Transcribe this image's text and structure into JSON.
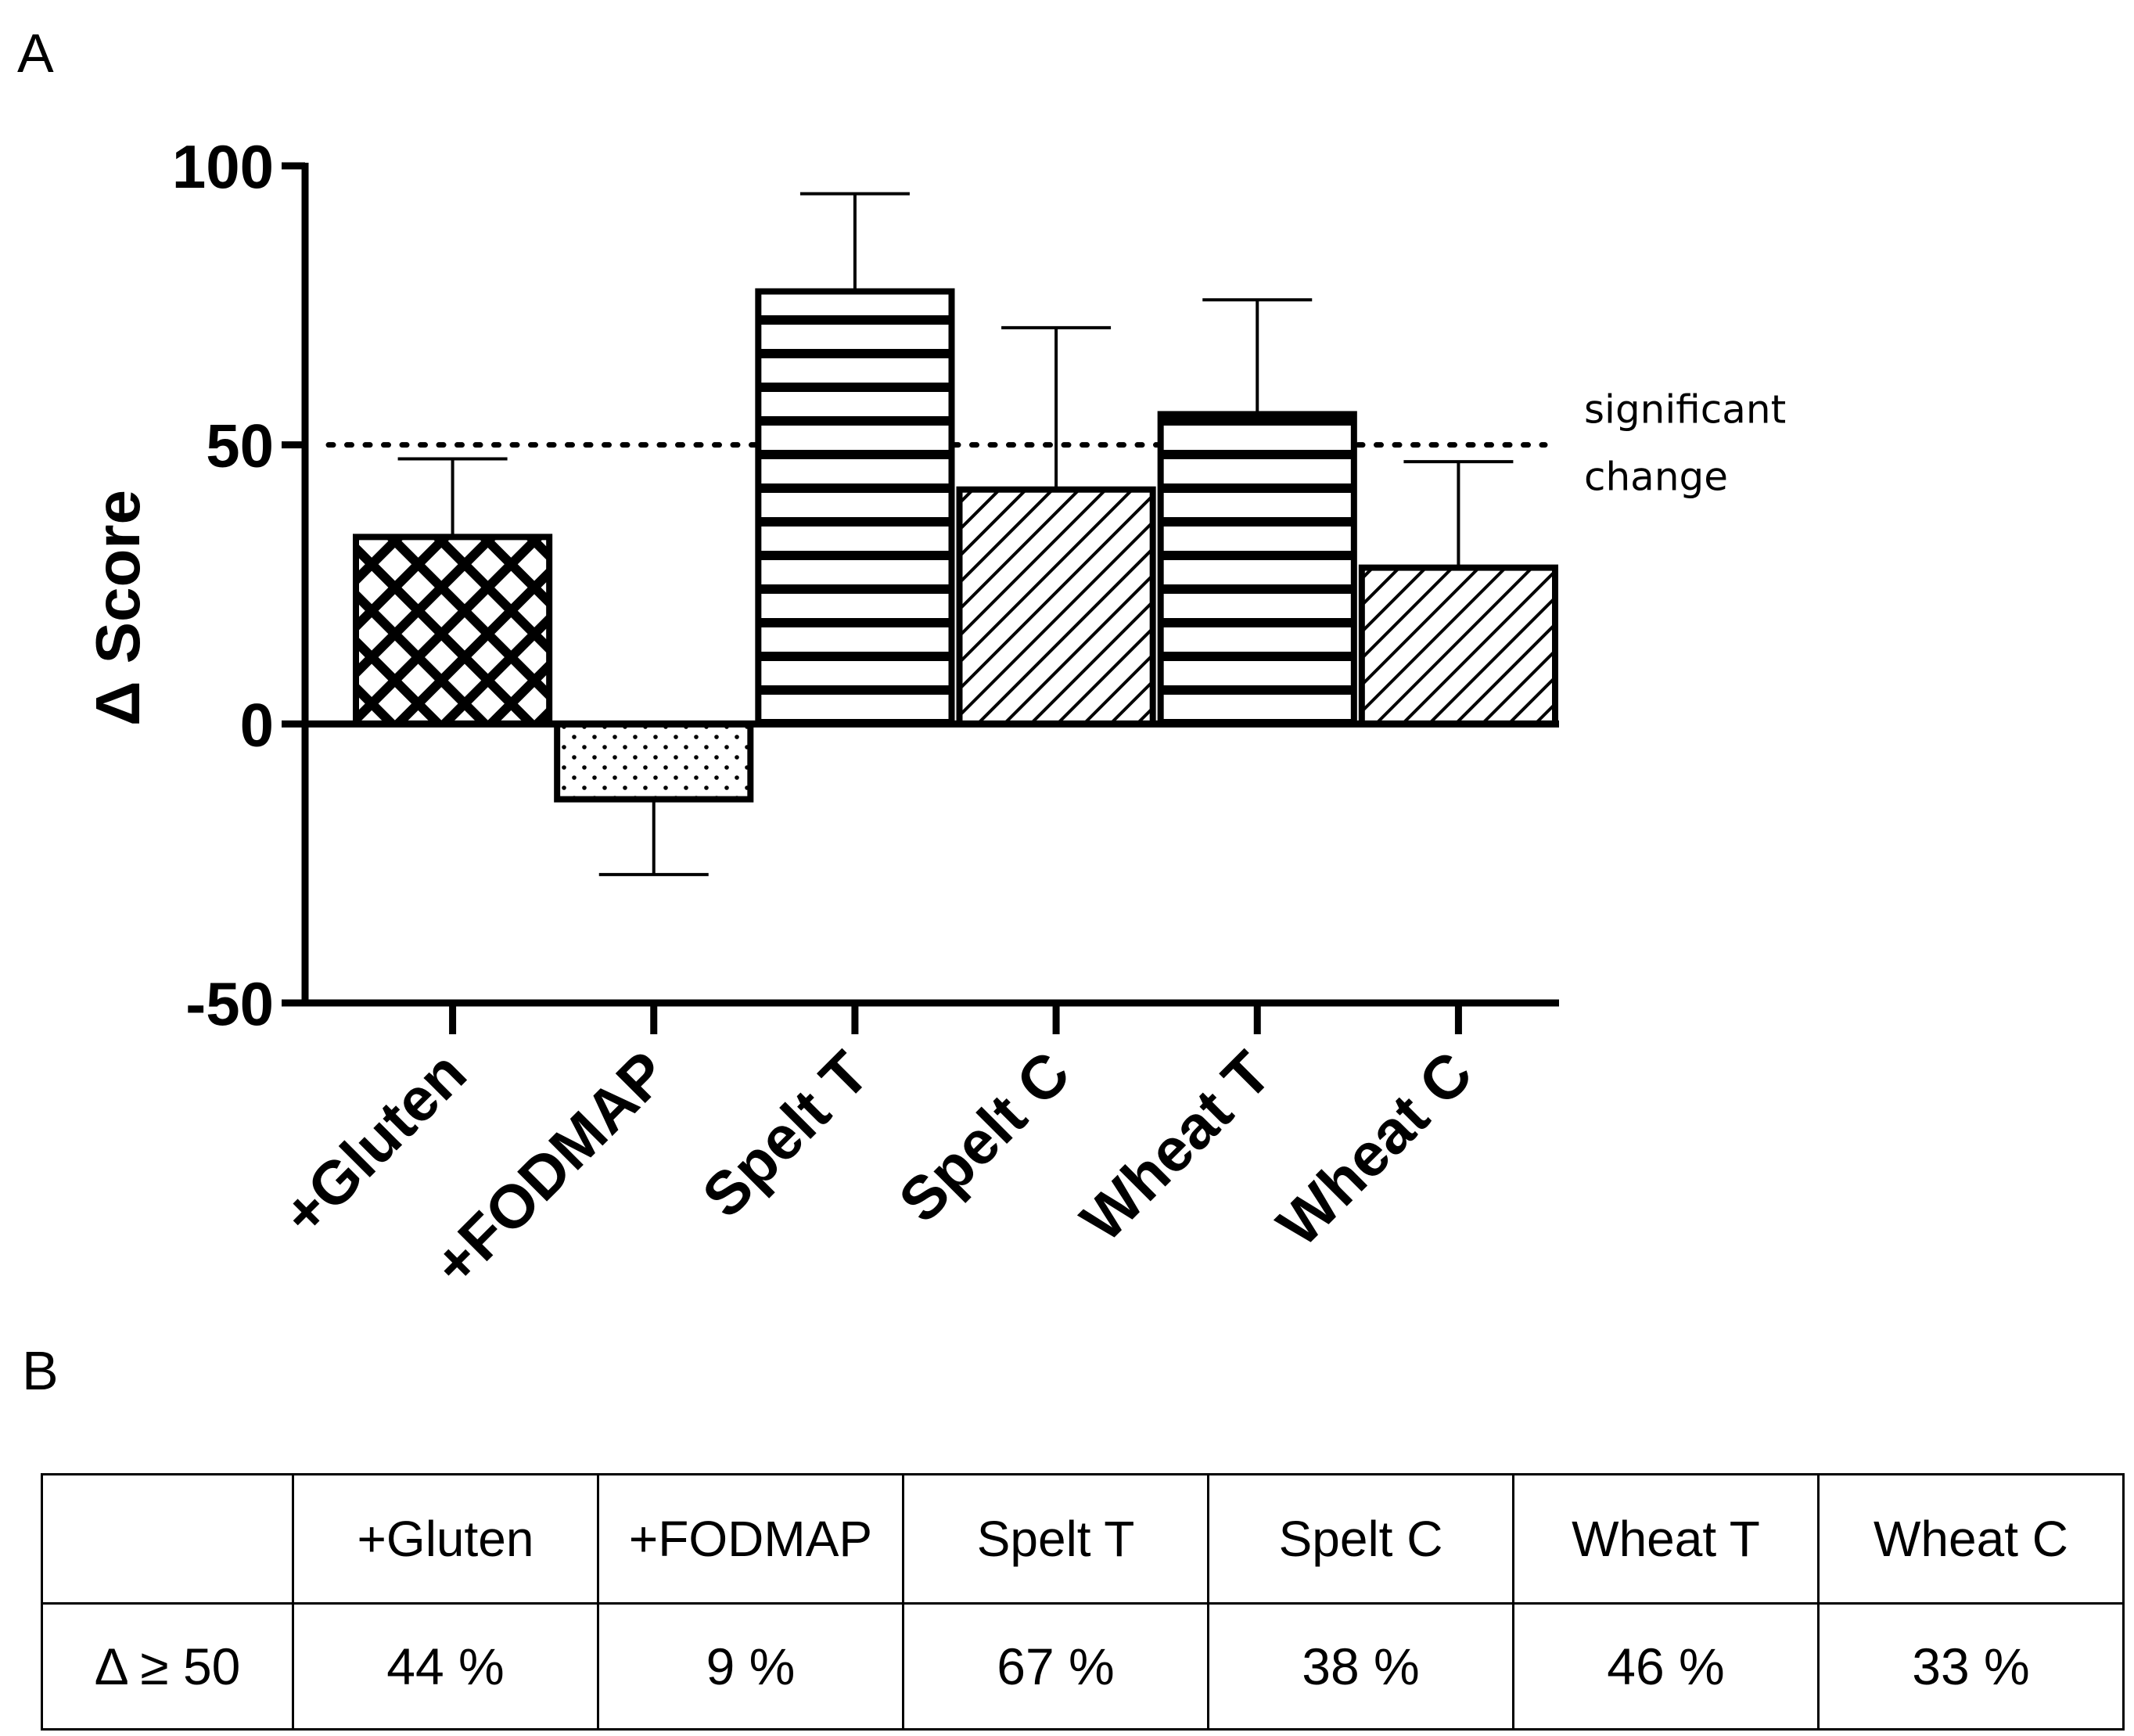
{
  "panel_a_label": "A",
  "panel_b_label": "B",
  "chart_data": {
    "type": "bar",
    "title": "",
    "xlabel": "",
    "ylabel": "Δ Score",
    "ylim": [
      -50,
      100
    ],
    "yticks": [
      -50,
      0,
      50,
      100
    ],
    "categories": [
      "+Gluten",
      "+FODMAP",
      "Spelt T",
      "Spelt C",
      "Wheat T",
      "Wheat C"
    ],
    "values": [
      33.5,
      -13.5,
      77.5,
      42,
      55.5,
      28
    ],
    "errors": [
      14,
      13.5,
      17.5,
      29,
      20.5,
      19
    ],
    "patterns": [
      "checker",
      "dots",
      "hstripes",
      "diagonal",
      "hstripes",
      "diagonal"
    ],
    "reference_line": {
      "value": 50,
      "style": "dotted",
      "label_line1": "significant",
      "label_line2": "change"
    },
    "grid": false
  },
  "table": {
    "headers": [
      "",
      "+Gluten",
      "+FODMAP",
      "Spelt T",
      "Spelt C",
      "Wheat T",
      "Wheat C"
    ],
    "row_label": "Δ ≥ 50",
    "row_values": [
      "44 %",
      "9 %",
      "67 %",
      "38 %",
      "46 %",
      "33 %"
    ]
  }
}
